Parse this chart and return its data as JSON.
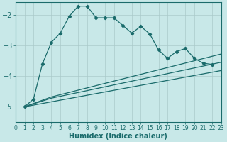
{
  "background_color": "#c8e8e8",
  "grid_color": "#aacaca",
  "line_color": "#1a6b6b",
  "xlabel": "Humidex (Indice chaleur)",
  "xlim": [
    0,
    23
  ],
  "ylim": [
    -5.5,
    -1.6
  ],
  "yticks": [
    -5,
    -4,
    -3,
    -2
  ],
  "xticks": [
    0,
    1,
    2,
    3,
    4,
    5,
    6,
    7,
    8,
    9,
    10,
    11,
    12,
    13,
    14,
    15,
    16,
    17,
    18,
    19,
    20,
    21,
    22,
    23
  ],
  "main_x": [
    1,
    2,
    3,
    4,
    5,
    6,
    7,
    8,
    9,
    10,
    11,
    12,
    13,
    14,
    15,
    16,
    17,
    18,
    19,
    20,
    21,
    22
  ],
  "main_y": [
    -5.0,
    -4.75,
    -3.6,
    -2.9,
    -2.6,
    -2.05,
    -1.72,
    -1.72,
    -2.1,
    -2.1,
    -2.1,
    -2.35,
    -2.6,
    -2.38,
    -2.62,
    -3.15,
    -3.42,
    -3.2,
    -3.1,
    -3.42,
    -3.58,
    -3.62
  ],
  "line1_x": [
    1,
    23
  ],
  "line1_y": [
    -5.0,
    -3.82
  ],
  "line2_x": [
    1,
    4,
    23
  ],
  "line2_y": [
    -5.0,
    -4.72,
    -3.55
  ],
  "line3_x": [
    1,
    4,
    23
  ],
  "line3_y": [
    -5.0,
    -4.68,
    -3.28
  ]
}
